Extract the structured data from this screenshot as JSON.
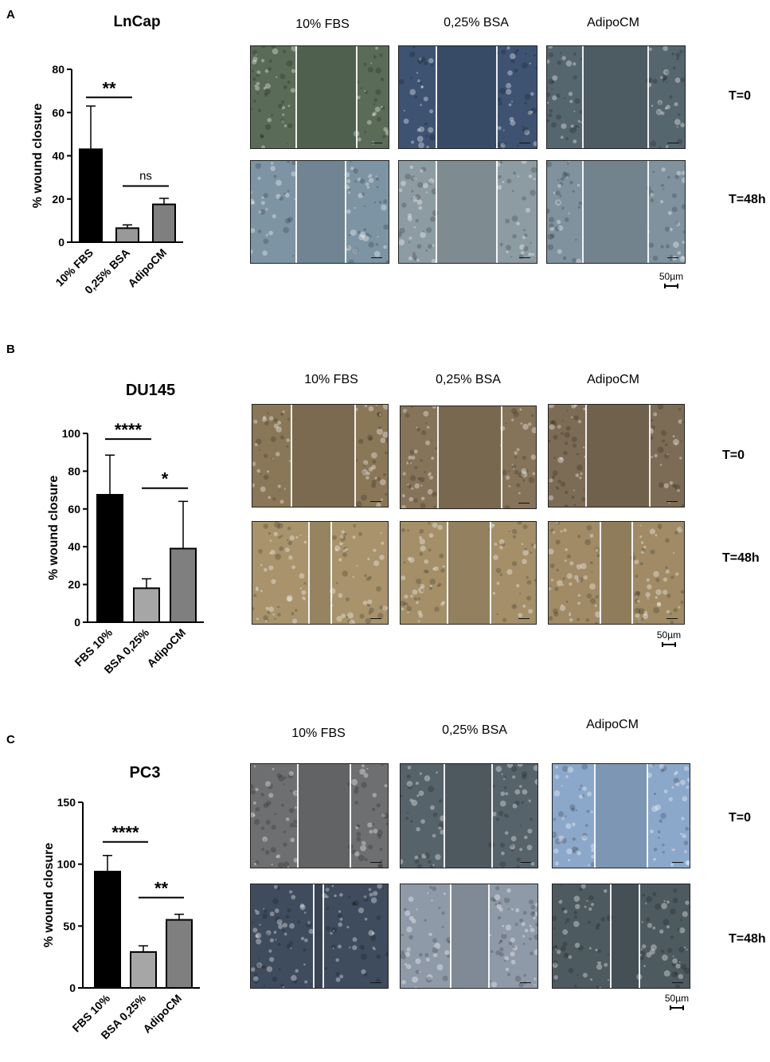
{
  "panels": [
    {
      "letter": "A",
      "title": "LnCap",
      "columns": [
        "10% FBS",
        "0,25% BSA",
        "AdipoCM"
      ],
      "rows": [
        "T=0",
        "T=48h"
      ],
      "scale_label": "50µm",
      "palettes": {
        "t0": [
          "#5a6b57",
          "#3e5372",
          "#56666e"
        ],
        "t48": [
          "#7d94a4",
          "#8d9ca3",
          "#7f929e"
        ]
      }
    },
    {
      "letter": "B",
      "title": "DU145",
      "columns": [
        "10% FBS",
        "0,25% BSA",
        "AdipoCM"
      ],
      "rows": [
        "T=0",
        "T=48h"
      ],
      "scale_label": "50µm",
      "palettes": {
        "t0": [
          "#8a7758",
          "#86745a",
          "#7d6c55"
        ],
        "t48": [
          "#a8936c",
          "#a48f69",
          "#a08b66"
        ]
      }
    },
    {
      "letter": "C",
      "title": "PC3",
      "columns": [
        "10% FBS",
        "0,25% BSA",
        "AdipoCM"
      ],
      "rows": [
        "T=0",
        "T=48h"
      ],
      "scale_label": "50µm",
      "palettes": {
        "t0": [
          "#6d6f70",
          "#56636a",
          "#8ba7c9"
        ],
        "t48": [
          "#3f4c5e",
          "#8f9aa8",
          "#4d5a60"
        ]
      }
    }
  ],
  "chart_data": [
    {
      "type": "bar",
      "title": "LnCap",
      "categories": [
        "10% FBS",
        "0,25% BSA",
        "AdipoCM"
      ],
      "values": [
        43,
        6.5,
        17.5
      ],
      "errors": [
        20,
        1.5,
        2.8
      ],
      "bar_colors": [
        "#000000",
        "#999999",
        "#7f7f7f"
      ],
      "ylabel": "% wound closure",
      "ylim": [
        0,
        80
      ],
      "yticks": [
        "0",
        "20",
        "40",
        "60",
        "80"
      ],
      "significance": [
        {
          "from": 0,
          "to": 1,
          "label": "**",
          "level": 67
        },
        {
          "from": 1,
          "to": 2,
          "label": "ns",
          "level": 26
        }
      ]
    },
    {
      "type": "bar",
      "title": "DU145",
      "categories": [
        "FBS 10%",
        "BSA 0,25%",
        "AdipoCM"
      ],
      "values": [
        67.5,
        18,
        39
      ],
      "errors": [
        21,
        5,
        25
      ],
      "bar_colors": [
        "#000000",
        "#a6a6a6",
        "#7f7f7f"
      ],
      "ylabel": "% wound closure",
      "ylim": [
        0,
        100
      ],
      "yticks": [
        "0",
        "20",
        "40",
        "60",
        "80",
        "100"
      ],
      "significance": [
        {
          "from": 0,
          "to": 1,
          "label": "****",
          "level": 97
        },
        {
          "from": 1,
          "to": 2,
          "label": "*",
          "level": 71
        }
      ]
    },
    {
      "type": "bar",
      "title": "PC3",
      "categories": [
        "FBS 10%",
        "BSA 0,25%",
        "AdipoCM"
      ],
      "values": [
        94,
        29,
        55
      ],
      "errors": [
        13,
        5,
        4.5
      ],
      "bar_colors": [
        "#000000",
        "#a6a6a6",
        "#7f7f7f"
      ],
      "ylabel": "% wound closure",
      "ylim": [
        0,
        150
      ],
      "yticks": [
        "0",
        "50",
        "100",
        "150"
      ],
      "significance": [
        {
          "from": 0,
          "to": 1,
          "label": "****",
          "level": 118
        },
        {
          "from": 1,
          "to": 2,
          "label": "**",
          "level": 73
        }
      ]
    }
  ]
}
